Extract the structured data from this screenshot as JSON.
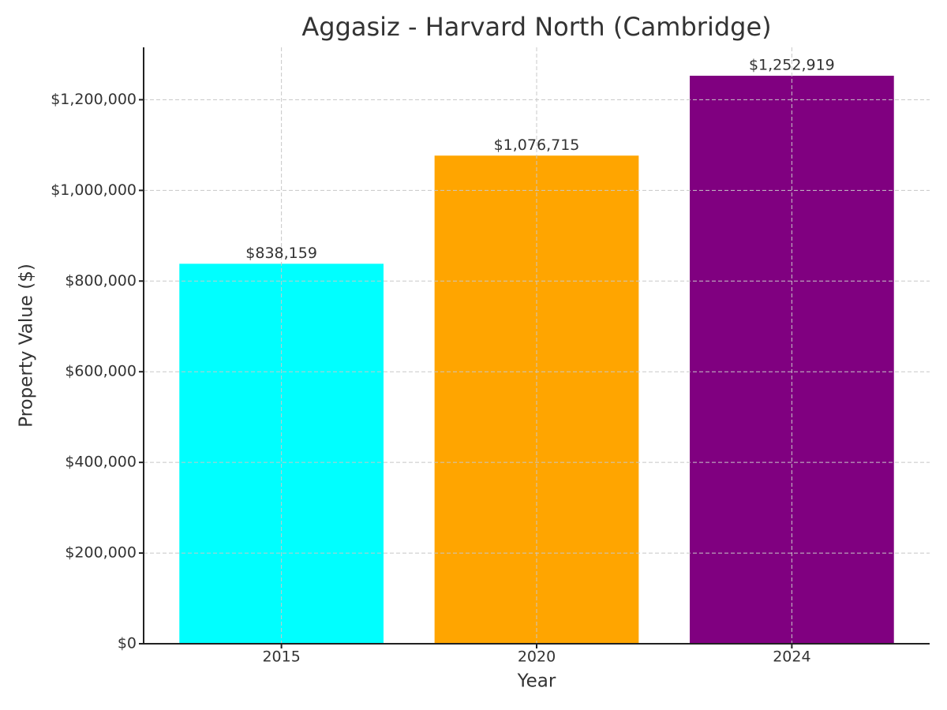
{
  "chart_data": {
    "type": "bar",
    "title": "Aggasiz - Harvard North (Cambridge)",
    "x_label": "Year",
    "y_label": "Property Value ($)",
    "categories": [
      "2015",
      "2020",
      "2024"
    ],
    "values": [
      838159,
      1076715,
      1252919
    ],
    "value_labels": [
      "$838,159",
      "$1,076,715",
      "$1,252,919"
    ],
    "colors": [
      "#00ffff",
      "#ffa500",
      "#800080"
    ],
    "ylim": [
      0,
      1315565
    ],
    "yticks": [
      {
        "value": 0,
        "label": "$0"
      },
      {
        "value": 200000,
        "label": "$200,000"
      },
      {
        "value": 400000,
        "label": "$400,000"
      },
      {
        "value": 600000,
        "label": "$600,000"
      },
      {
        "value": 800000,
        "label": "$800,000"
      },
      {
        "value": 1000000,
        "label": "$1,000,000"
      },
      {
        "value": 1200000,
        "label": "$1,200,000"
      }
    ],
    "grid": true
  }
}
